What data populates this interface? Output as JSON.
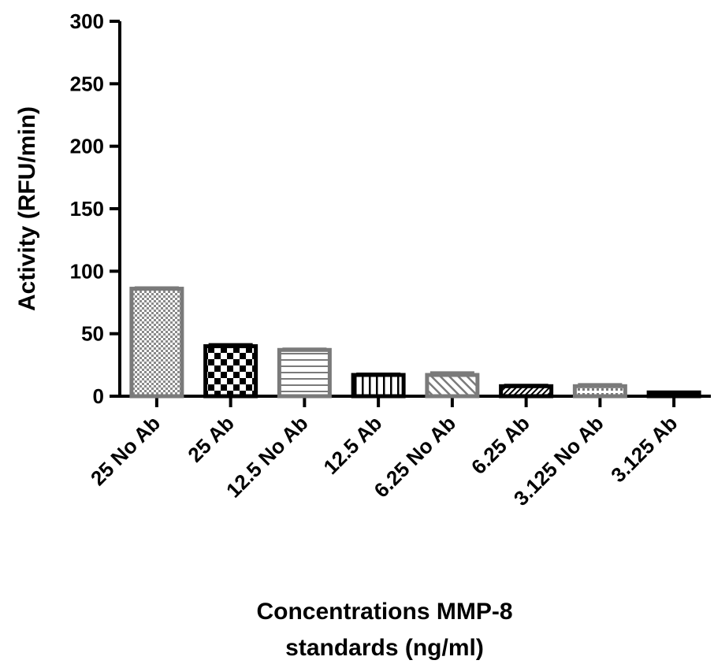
{
  "chart_data": {
    "type": "bar",
    "title": "",
    "ylabel": "Activity (RFU/min)",
    "xlabel_lines": [
      "Concentrations MMP-8",
      "standards (ng/ml)"
    ],
    "ylim": [
      0,
      300
    ],
    "yticks": [
      "0",
      "50",
      "100",
      "150",
      "200",
      "250",
      "300"
    ],
    "categories": [
      "25 No Ab",
      "25 Ab",
      "12.5 No Ab",
      "12.5 Ab",
      "6.25 No Ab",
      "6.25 Ab",
      "3.125 No Ab",
      "3.125 Ab"
    ],
    "values": [
      86,
      40,
      37,
      17,
      17,
      8,
      8,
      3
    ],
    "errors": [
      1,
      1.5,
      1,
      1,
      2,
      1,
      1.5,
      0.5
    ],
    "bar_styles": [
      {
        "pattern": "dense-dots",
        "stroke": "#7a7a7a"
      },
      {
        "pattern": "checker",
        "stroke": "#000000"
      },
      {
        "pattern": "horizontal-lines",
        "stroke": "#7a7a7a"
      },
      {
        "pattern": "vertical-lines",
        "stroke": "#000000"
      },
      {
        "pattern": "diagonal-lines",
        "stroke": "#7a7a7a"
      },
      {
        "pattern": "diagonal-dense",
        "stroke": "#000000"
      },
      {
        "pattern": "dots",
        "stroke": "#7a7a7a"
      },
      {
        "pattern": "solid",
        "stroke": "#000000"
      }
    ],
    "grid": false,
    "legend": "none"
  }
}
